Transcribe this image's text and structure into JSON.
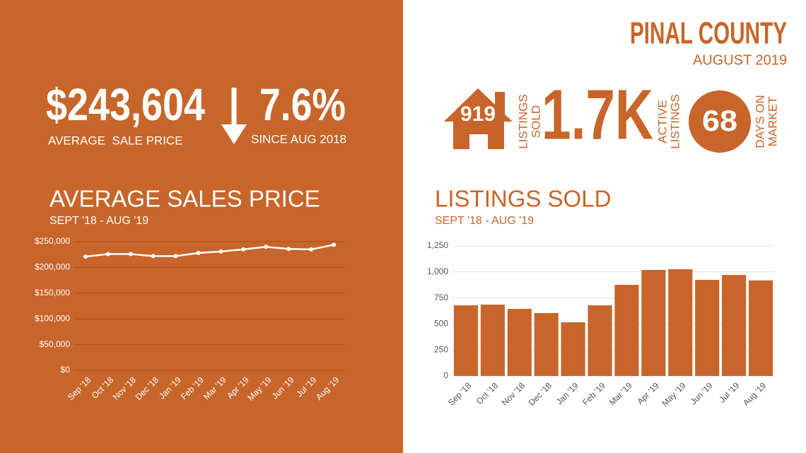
{
  "header": {
    "title": "PINAL COUNTY",
    "subtitle": "AUGUST 2019"
  },
  "stats": {
    "average_price": "$243,604",
    "average_price_label": "AVERAGE  SALE PRICE",
    "change": "7.6%",
    "change_label": "SINCE AUG 2018",
    "listings_sold": "919",
    "listings_sold_label": [
      "LISTINGS",
      "SOLD"
    ],
    "active": "1.7K",
    "active_label": [
      "ACTIVE",
      "LISTINGS"
    ],
    "days": "68",
    "days_label": [
      "DAYS ON",
      "MARKET"
    ]
  },
  "chart_data": [
    {
      "type": "line",
      "title": "AVERAGE SALES PRICE",
      "subtitle": "SEPT '18 - AUG '19",
      "categories": [
        "Sep '18",
        "Oct '18",
        "Nov '18",
        "Dec '18",
        "Jan '19",
        "Feb '19",
        "Mar '19",
        "Apr '19",
        "May '19",
        "Jun '19",
        "Jul '19",
        "Aug '19"
      ],
      "values": [
        221000,
        226000,
        226000,
        222000,
        222000,
        228000,
        231000,
        235000,
        240000,
        236000,
        235000,
        244000
      ],
      "color": "#ffffff",
      "ylim": [
        0,
        250000
      ],
      "yticks": [
        {
          "value": 0,
          "label": "$0"
        },
        {
          "value": 50000,
          "label": "$50,000"
        },
        {
          "value": 100000,
          "label": "$100,000"
        },
        {
          "value": 150000,
          "label": "$150,000"
        },
        {
          "value": 200000,
          "label": "$200,000"
        },
        {
          "value": 250000,
          "label": "$250,000"
        }
      ],
      "grid": true
    },
    {
      "type": "bar",
      "title": "LISTINGS SOLD",
      "subtitle": "SEPT '18 - AUG '19",
      "categories": [
        "Sep '18",
        "Oct '18",
        "Nov '18",
        "Dec '18",
        "Jan '19",
        "Feb '19",
        "Mar '19",
        "Apr '19",
        "May '19",
        "Jun '19",
        "Jul '19",
        "Aug '19"
      ],
      "values": [
        679,
        686,
        645,
        605,
        516,
        679,
        876,
        1019,
        1026,
        924,
        971,
        919
      ],
      "color": "#c8652a",
      "ylim": [
        0,
        1250
      ],
      "yticks": [
        0,
        250,
        500,
        750,
        {
          "value": 1000,
          "label": "1,000"
        },
        {
          "value": 1250,
          "label": "1,250"
        }
      ],
      "grid": true
    }
  ]
}
